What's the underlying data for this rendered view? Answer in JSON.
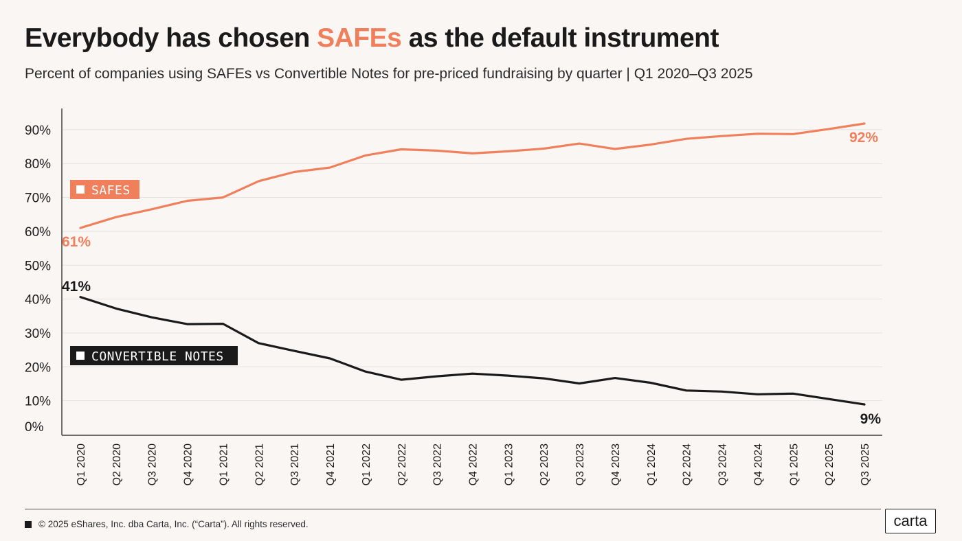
{
  "header": {
    "title_before": "Everybody has chosen ",
    "title_highlight": "SAFEs",
    "title_after": " as the default instrument",
    "subtitle": "Percent of companies using SAFEs vs Convertible Notes for pre-priced fundraising by quarter | Q1 2020–Q3 2025"
  },
  "chart_data": {
    "type": "line",
    "categories": [
      "Q1 2020",
      "Q2 2020",
      "Q3 2020",
      "Q4 2020",
      "Q1 2021",
      "Q2 2021",
      "Q3 2021",
      "Q4 2021",
      "Q1 2022",
      "Q2 2022",
      "Q3 2022",
      "Q4 2022",
      "Q1 2023",
      "Q2 2023",
      "Q3 2023",
      "Q4 2023",
      "Q1 2024",
      "Q2 2024",
      "Q3 2024",
      "Q4 2024",
      "Q1 2025",
      "Q2 2025",
      "Q3 2025"
    ],
    "series": [
      {
        "name": "SAFES",
        "color": "#f07f5c",
        "values": [
          61,
          64.2,
          66.5,
          69,
          70,
          74.8,
          77.5,
          78.8,
          82.4,
          84.2,
          83.8,
          83,
          83.6,
          84.4,
          85.9,
          84.3,
          85.6,
          87.3,
          88.1,
          88.8,
          88.7,
          90.2,
          91.8
        ],
        "start_label": "61%",
        "end_label": "92%"
      },
      {
        "name": "CONVERTIBLE NOTES",
        "color": "#1a1a1a",
        "values": [
          40.6,
          37.2,
          34.6,
          32.6,
          32.7,
          27,
          24.7,
          22.5,
          18.6,
          16.2,
          17.2,
          18,
          17.4,
          16.6,
          15.1,
          16.7,
          15.3,
          13,
          12.7,
          11.9,
          12.1,
          10.5,
          8.9
        ],
        "start_label": "41%",
        "end_label": "9%"
      }
    ],
    "y_ticks": [
      "0%",
      "10%",
      "20%",
      "30%",
      "40%",
      "50%",
      "60%",
      "70%",
      "80%",
      "90%"
    ],
    "ylim": [
      0,
      95
    ],
    "grid": true,
    "legend_placement": "inline"
  },
  "footer": {
    "copyright": "© 2025 eShares, Inc. dba Carta, Inc. (“Carta”). All rights reserved.",
    "logo_text": "carta"
  }
}
